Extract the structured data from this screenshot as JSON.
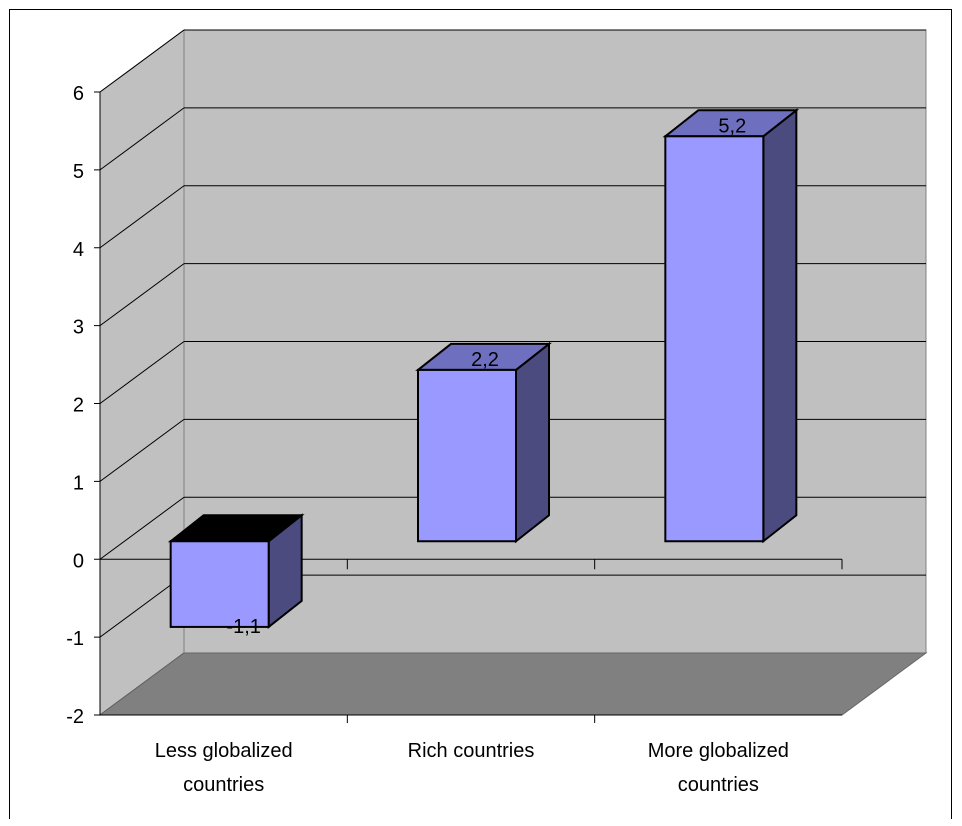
{
  "chart_data": {
    "type": "bar",
    "categories": [
      "Less globalized countries",
      "Rich countries",
      "More globalized countries"
    ],
    "category_label_lines": [
      [
        "Less globalized",
        "countries"
      ],
      [
        "Rich countries"
      ],
      [
        "More globalized",
        "countries"
      ]
    ],
    "values": [
      -1.1,
      2.2,
      5.2
    ],
    "data_labels": [
      "-1,1",
      "2,2",
      "5,2"
    ],
    "y_ticks": [
      "-2",
      "-1",
      "0",
      "1",
      "2",
      "3",
      "4",
      "5",
      "6"
    ],
    "ylim": [
      -2,
      6
    ],
    "grid": true,
    "legend": "none",
    "style": "3d",
    "colors": {
      "bar_front": "#9999FF",
      "bar_side": "#4B4B80",
      "bar_top": "#6F6FBF",
      "wall": "#C0C0C0",
      "floor": "#808080"
    }
  }
}
